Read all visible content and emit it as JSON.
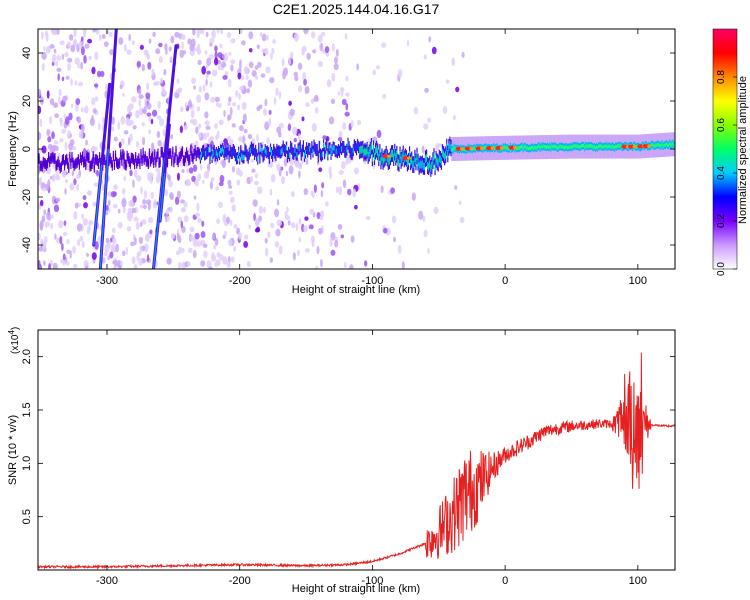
{
  "title": "C2E1.2025.144.04.16.G17",
  "chart_data": [
    {
      "type": "heatmap",
      "xlabel": "Height of straight line (km)",
      "ylabel": "Frequency (Hz)",
      "xlim": [
        -352,
        128
      ],
      "ylim": [
        -50,
        50
      ],
      "xticks": [
        -300,
        -200,
        -100,
        0,
        100
      ],
      "yticks": [
        -40,
        -20,
        0,
        20,
        40
      ],
      "colorbar": {
        "label": "Normalized spectral amplitude",
        "range": [
          0,
          1
        ],
        "ticks": [
          "0.0",
          "0.2",
          "0.4",
          "0.6",
          "0.8"
        ],
        "colors": [
          "#ffffff",
          "#cc99ff",
          "#7700ff",
          "#0000ff",
          "#00ccff",
          "#00ff66",
          "#88ff00",
          "#ffff00",
          "#ff8800",
          "#ff0000",
          "#ff0066"
        ]
      },
      "trace": {
        "description_points": [
          {
            "x": -352,
            "y": -6
          },
          {
            "x": -300,
            "y": -5
          },
          {
            "x": -250,
            "y": -3
          },
          {
            "x": -200,
            "y": -2
          },
          {
            "x": -150,
            "y": -1
          },
          {
            "x": -110,
            "y": 0
          },
          {
            "x": -90,
            "y": -3
          },
          {
            "x": -70,
            "y": -4
          },
          {
            "x": -55,
            "y": -6
          },
          {
            "x": -40,
            "y": 0
          },
          {
            "x": 0,
            "y": 0.5
          },
          {
            "x": 50,
            "y": 1
          },
          {
            "x": 100,
            "y": 1
          },
          {
            "x": 128,
            "y": 2
          }
        ]
      },
      "streaks": [
        {
          "x0": -310,
          "y0": -40,
          "x1": -298,
          "y1": 27
        },
        {
          "x0": -305,
          "y0": -50,
          "x1": -293,
          "y1": 50
        },
        {
          "x0": -265,
          "y0": -50,
          "x1": -248,
          "y1": 43
        },
        {
          "x0": -260,
          "y0": -30,
          "x1": -253,
          "y1": 10
        }
      ]
    },
    {
      "type": "line",
      "xlabel": "Height of straight line (km)",
      "ylabel": "SNR (10 * v/v)",
      "multiplier_label": "(x10",
      "multiplier_exp": "4",
      "multiplier_close": ")",
      "xlim": [
        -352,
        128
      ],
      "ylim": [
        0,
        2.25
      ],
      "xticks": [
        -300,
        -200,
        -100,
        0,
        100
      ],
      "yticks": [
        "0.5",
        "1.0",
        "1.5",
        "2.0"
      ],
      "series": [
        {
          "color": "#e62020",
          "x": [
            -352,
            -300,
            -250,
            -200,
            -150,
            -120,
            -100,
            -80,
            -60,
            -50,
            -40,
            -30,
            -20,
            -10,
            0,
            10,
            20,
            30,
            40,
            50,
            60,
            70,
            80,
            90,
            100,
            110,
            120,
            128
          ],
          "y": [
            0.03,
            0.03,
            0.04,
            0.05,
            0.04,
            0.05,
            0.08,
            0.15,
            0.25,
            0.35,
            0.5,
            0.7,
            0.8,
            0.95,
            1.08,
            1.15,
            1.22,
            1.3,
            1.33,
            1.35,
            1.36,
            1.37,
            1.37,
            1.38,
            1.38,
            1.36,
            1.35,
            1.35
          ],
          "noise_envelope": [
            {
              "x": -60,
              "amp": 0.15
            },
            {
              "x": -40,
              "amp": 0.35
            },
            {
              "x": -30,
              "amp": 0.45
            },
            {
              "x": -20,
              "amp": 0.35
            },
            {
              "x": -10,
              "amp": 0.15
            },
            {
              "x": 0,
              "amp": 0.08
            },
            {
              "x": 80,
              "amp": 0.04
            },
            {
              "x": 92,
              "amp": 0.35
            },
            {
              "x": 97,
              "amp": 0.75
            },
            {
              "x": 102,
              "amp": 0.35
            },
            {
              "x": 110,
              "amp": 0.05
            }
          ]
        }
      ]
    }
  ]
}
